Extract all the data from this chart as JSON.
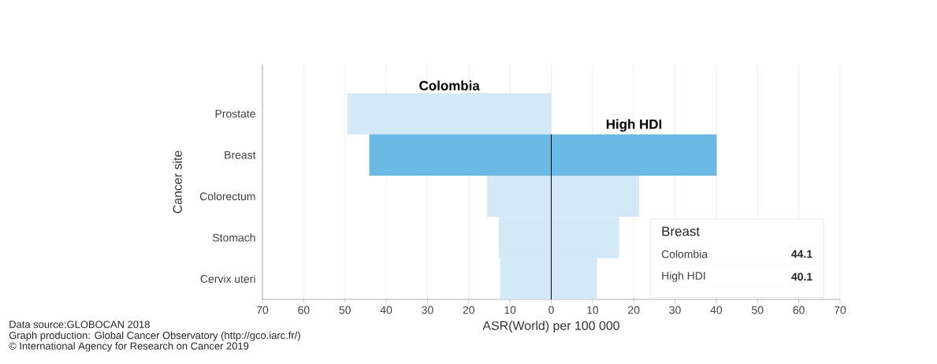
{
  "chart_data": {
    "type": "bar",
    "orientation": "horizontal",
    "xlabel": "ASR(World) per 100 000",
    "ylabel": "Cancer site",
    "categories": [
      "Prostate",
      "Breast",
      "Colorectum",
      "Stomach",
      "Cervix uteri"
    ],
    "series": [
      {
        "name": "Colombia",
        "values": [
          -49.4,
          -44.1,
          -15.6,
          -12.7,
          -12.4
        ],
        "colors": [
          "#d4e9f7",
          "#6cb9e6",
          "#d4e9f7",
          "#d4e9f7",
          "#d4e9f7"
        ]
      },
      {
        "name": "High HDI",
        "values": [
          null,
          40.1,
          21.3,
          16.4,
          11.1
        ],
        "colors": [
          "#d4e9f7",
          "#6cb9e6",
          "#d4e9f7",
          "#d4e9f7",
          "#d4e9f7"
        ]
      }
    ],
    "xlim": [
      -70,
      70
    ],
    "xticks": [
      {
        "value": -70,
        "label": "70"
      },
      {
        "value": -60,
        "label": "60"
      },
      {
        "value": -50,
        "label": "50"
      },
      {
        "value": -40,
        "label": "40"
      },
      {
        "value": -30,
        "label": "30"
      },
      {
        "value": -20,
        "label": "20"
      },
      {
        "value": -10,
        "label": "10"
      },
      0,
      10,
      20,
      30,
      40,
      50,
      60,
      70
    ],
    "grid": "x",
    "stacked": true,
    "ref_lines": [
      {
        "axis": "x",
        "value": 0,
        "color": "#000000"
      }
    ],
    "annotations": [
      "Data source:GLOBOCAN 2018",
      "Graph production: Global Cancer Observatory (http://gco.iarc.fr/)",
      "© International Agency for Research on Cancer 2019",
      "Breast",
      "Colombia",
      "44.1",
      "High HDI",
      "40.1"
    ]
  }
}
